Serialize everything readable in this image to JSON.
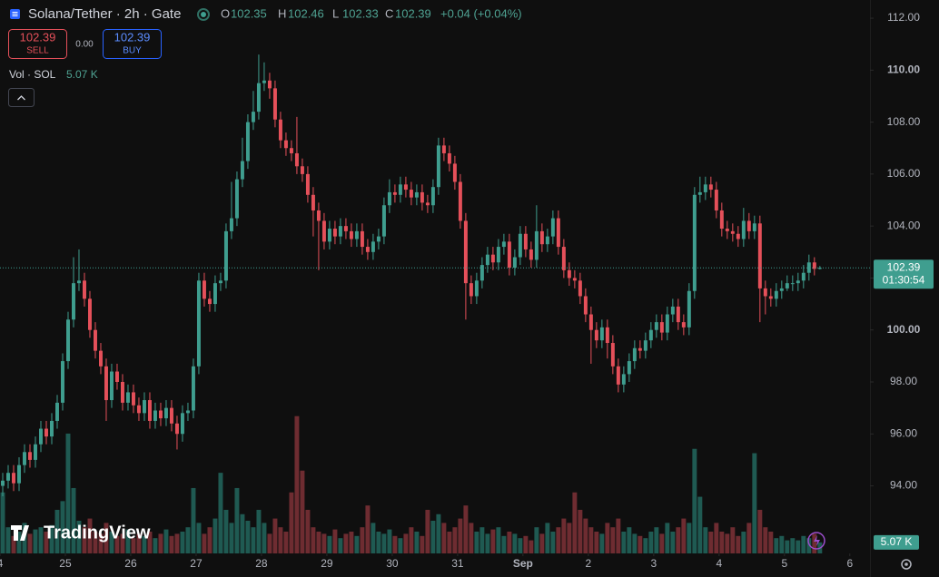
{
  "chart_data": {
    "type": "candlestick",
    "title": "Solana/Tether · 2h · Gate",
    "ohlc": [
      {
        "label": "O",
        "value": 102.35
      },
      {
        "label": "H",
        "value": 102.46
      },
      {
        "label": "L",
        "value": 102.33
      },
      {
        "label": "C",
        "value": 102.39
      }
    ],
    "change": "+0.04 (+0.04%)",
    "sell": {
      "price": 102.39,
      "label": "SELL"
    },
    "spread": "0.00",
    "buy": {
      "price": 102.39,
      "label": "BUY"
    },
    "volume_title": "Vol · SOL",
    "volume_last": "5.07 K",
    "price_tag": {
      "price": 102.39,
      "countdown": "01:30:54"
    },
    "volume_tag": "5.07 K",
    "brand": "TradingView",
    "up_color": "#3f9e8f",
    "down_color": "#e5505a",
    "volume_up_color": "#1f5a52",
    "volume_down_color": "#6e2c31",
    "xlim": [
      0,
      159.7
    ],
    "xticks": [
      {
        "value": 0,
        "label": "4"
      },
      {
        "value": 12,
        "label": "25"
      },
      {
        "value": 24,
        "label": "26"
      },
      {
        "value": 36,
        "label": "27"
      },
      {
        "value": 48,
        "label": "28"
      },
      {
        "value": 60,
        "label": "29"
      },
      {
        "value": 72,
        "label": "30"
      },
      {
        "value": 84,
        "label": "31"
      },
      {
        "value": 96,
        "label": "Sep"
      },
      {
        "value": 108,
        "label": "2"
      },
      {
        "value": 120,
        "label": "3"
      },
      {
        "value": 132,
        "label": "4"
      },
      {
        "value": 144,
        "label": "5"
      },
      {
        "value": 156,
        "label": "6"
      }
    ],
    "ylim": [
      91.4,
      112.7
    ],
    "yticks": [
      {
        "value": 94,
        "label": "94.00"
      },
      {
        "value": 96,
        "label": "96.00"
      },
      {
        "value": 98,
        "label": "98.00"
      },
      {
        "value": 100,
        "label": "100.00"
      },
      {
        "value": 102,
        "label": "102.00"
      },
      {
        "value": 104,
        "label": "104.00"
      },
      {
        "value": 106,
        "label": "106.00"
      },
      {
        "value": 108,
        "label": "108.00"
      },
      {
        "value": 110,
        "label": "110.00"
      },
      {
        "value": 112,
        "label": "112.00"
      }
    ],
    "y2lim": [
      0,
      254
    ],
    "open": [
      94.0,
      94.2,
      94.5,
      94.1,
      94.8,
      95.3,
      95.0,
      95.6,
      96.2,
      95.9,
      96.5,
      97.2,
      98.8,
      100.4,
      101.8,
      101.9,
      101.2,
      100.0,
      99.2,
      98.6,
      97.3,
      98.4,
      98.0,
      97.2,
      97.6,
      97.1,
      96.8,
      97.3,
      96.5,
      96.9,
      96.6,
      97.0,
      96.4,
      96.0,
      96.8,
      96.9,
      98.6,
      101.9,
      101.2,
      101.0,
      101.8,
      101.9,
      103.8,
      104.3,
      105.8,
      106.5,
      108.0,
      108.4,
      109.5,
      109.6,
      109.3,
      108.1,
      107.3,
      107.0,
      106.8,
      106.3,
      106.0,
      105.2,
      104.6,
      104.2,
      103.4,
      103.9,
      103.6,
      104.0,
      103.8,
      103.5,
      103.8,
      103.2,
      103.0,
      103.4,
      103.6,
      104.8,
      105.3,
      105.2,
      105.6,
      105.4,
      105.1,
      105.3,
      104.9,
      104.8,
      105.5,
      107.1,
      106.8,
      106.4,
      105.7,
      104.2,
      101.8,
      101.3,
      101.9,
      102.5,
      102.9,
      102.6,
      103.2,
      103.4,
      102.4,
      102.8,
      103.7,
      103.1,
      102.7,
      103.8,
      103.3,
      103.6,
      104.3,
      103.2,
      102.3,
      102.0,
      101.9,
      101.3,
      100.6,
      100.0,
      99.6,
      100.1,
      99.5,
      98.6,
      97.9,
      98.3,
      98.8,
      99.3,
      99.2,
      99.6,
      100.0,
      100.3,
      99.9,
      100.6,
      100.9,
      100.3,
      100.1,
      101.5,
      105.2,
      105.3,
      105.6,
      105.4,
      104.6,
      103.9,
      103.8,
      103.7,
      103.5,
      104.2,
      103.8,
      104.1,
      101.6,
      101.3,
      101.2,
      101.5,
      101.6,
      101.8,
      101.8,
      101.9,
      102.2,
      102.6,
      102.35
    ],
    "high": [
      94.5,
      94.8,
      94.8,
      95.1,
      95.6,
      95.6,
      95.9,
      96.5,
      96.5,
      96.8,
      97.5,
      99.1,
      100.7,
      102.8,
      103.1,
      102.2,
      101.5,
      100.3,
      99.5,
      98.9,
      98.7,
      98.7,
      98.3,
      97.9,
      97.9,
      97.4,
      97.6,
      97.6,
      97.2,
      97.2,
      97.3,
      97.3,
      96.7,
      97.1,
      97.2,
      98.9,
      102.2,
      102.2,
      101.5,
      102.1,
      102.2,
      104.1,
      105.7,
      106.1,
      107.4,
      108.3,
      109.2,
      110.6,
      110.3,
      109.9,
      109.6,
      108.4,
      107.6,
      107.3,
      108.2,
      106.6,
      106.3,
      105.5,
      104.9,
      104.5,
      104.2,
      104.2,
      104.3,
      104.3,
      104.1,
      104.1,
      104.1,
      103.5,
      103.7,
      103.9,
      105.1,
      105.8,
      105.6,
      105.9,
      105.9,
      105.7,
      105.6,
      105.6,
      105.2,
      105.8,
      107.4,
      107.4,
      107.1,
      106.7,
      106.0,
      104.5,
      102.1,
      102.2,
      102.8,
      103.2,
      103.2,
      103.5,
      103.7,
      103.7,
      103.1,
      104.0,
      104.0,
      103.4,
      104.8,
      104.1,
      103.9,
      104.6,
      104.6,
      103.5,
      102.6,
      102.3,
      102.2,
      101.6,
      100.9,
      100.3,
      100.4,
      100.4,
      99.8,
      98.9,
      98.6,
      99.1,
      99.6,
      99.6,
      99.9,
      100.3,
      100.6,
      100.6,
      100.9,
      101.2,
      101.2,
      100.6,
      101.8,
      105.5,
      105.9,
      105.9,
      105.9,
      105.7,
      104.9,
      104.2,
      104.1,
      104.0,
      104.7,
      104.5,
      104.4,
      104.4,
      101.9,
      101.6,
      101.8,
      101.9,
      102.1,
      102.1,
      102.2,
      102.5,
      102.9,
      102.8,
      102.46
    ],
    "low": [
      93.6,
      93.9,
      93.8,
      93.8,
      94.5,
      94.7,
      94.7,
      95.3,
      95.6,
      95.6,
      96.2,
      96.9,
      98.5,
      100.1,
      101.5,
      100.9,
      99.7,
      98.9,
      98.3,
      96.5,
      97.0,
      97.7,
      96.9,
      96.9,
      96.8,
      96.5,
      96.5,
      96.2,
      96.2,
      96.3,
      96.3,
      96.1,
      95.4,
      95.7,
      96.5,
      96.6,
      98.3,
      100.9,
      100.7,
      100.7,
      101.5,
      101.6,
      103.5,
      104.0,
      105.5,
      106.2,
      107.7,
      108.1,
      109.2,
      108.9,
      107.8,
      107.0,
      106.7,
      106.5,
      106.0,
      105.7,
      104.9,
      103.6,
      102.3,
      103.1,
      103.1,
      103.3,
      103.3,
      103.5,
      103.2,
      103.2,
      102.9,
      102.7,
      102.7,
      103.1,
      103.3,
      104.5,
      104.9,
      104.9,
      105.1,
      104.8,
      104.8,
      104.6,
      104.5,
      104.5,
      105.2,
      106.5,
      106.1,
      105.4,
      103.9,
      100.4,
      101.0,
      101.0,
      101.6,
      102.2,
      102.3,
      102.3,
      102.9,
      102.1,
      102.1,
      102.5,
      102.8,
      102.4,
      102.4,
      103.0,
      103.0,
      103.3,
      102.9,
      102.0,
      101.7,
      101.6,
      101.0,
      100.3,
      98.7,
      99.3,
      99.3,
      98.9,
      98.3,
      97.6,
      97.6,
      98.0,
      98.5,
      98.9,
      98.9,
      99.3,
      99.7,
      99.6,
      99.6,
      100.3,
      100.0,
      99.8,
      99.8,
      101.2,
      104.9,
      105.0,
      105.1,
      104.3,
      103.6,
      103.5,
      103.4,
      103.2,
      103.2,
      103.5,
      103.5,
      100.3,
      100.6,
      100.9,
      100.9,
      101.2,
      101.5,
      101.5,
      101.5,
      101.6,
      101.9,
      102.1,
      102.33
    ],
    "close": [
      94.2,
      94.5,
      94.1,
      94.8,
      95.3,
      95.0,
      95.6,
      96.2,
      95.9,
      96.5,
      97.2,
      98.8,
      100.4,
      101.8,
      101.9,
      101.2,
      100.0,
      99.2,
      98.6,
      97.3,
      98.4,
      98.0,
      97.2,
      97.6,
      97.1,
      96.8,
      97.3,
      96.5,
      96.9,
      96.6,
      97.0,
      96.4,
      96.0,
      96.8,
      96.9,
      98.6,
      101.9,
      101.2,
      101.0,
      101.8,
      101.9,
      103.8,
      104.3,
      105.8,
      106.5,
      108.0,
      108.4,
      109.5,
      109.6,
      109.3,
      108.1,
      107.3,
      107.0,
      106.8,
      106.3,
      106.0,
      105.2,
      104.6,
      104.2,
      103.4,
      103.9,
      103.6,
      104.0,
      103.8,
      103.5,
      103.8,
      103.2,
      103.0,
      103.4,
      103.6,
      104.8,
      105.3,
      105.2,
      105.6,
      105.4,
      105.1,
      105.3,
      104.9,
      104.8,
      105.5,
      107.1,
      106.8,
      106.4,
      105.7,
      104.2,
      101.8,
      101.3,
      101.9,
      102.5,
      102.9,
      102.6,
      103.2,
      103.4,
      102.4,
      102.8,
      103.7,
      103.1,
      102.7,
      103.8,
      103.3,
      103.6,
      104.3,
      103.2,
      102.3,
      102.0,
      101.9,
      101.3,
      100.6,
      100.0,
      99.6,
      100.1,
      99.5,
      98.6,
      97.9,
      98.3,
      98.8,
      99.3,
      99.2,
      99.6,
      100.0,
      100.3,
      99.9,
      100.6,
      100.9,
      100.3,
      100.1,
      101.5,
      105.2,
      105.3,
      105.6,
      105.4,
      104.6,
      103.9,
      103.8,
      103.7,
      103.5,
      104.2,
      103.8,
      104.1,
      101.6,
      101.3,
      101.2,
      101.5,
      101.6,
      101.8,
      101.8,
      101.9,
      102.2,
      102.6,
      102.35,
      102.39
    ],
    "volume": [
      28,
      12,
      8,
      10,
      14,
      9,
      11,
      12,
      10,
      13,
      20,
      24,
      55,
      30,
      15,
      12,
      16,
      10,
      9,
      14,
      10,
      8,
      9,
      11,
      7,
      9,
      8,
      10,
      7,
      9,
      11,
      8,
      9,
      10,
      12,
      30,
      14,
      9,
      12,
      16,
      37,
      20,
      14,
      30,
      18,
      15,
      12,
      20,
      14,
      9,
      16,
      12,
      10,
      28,
      63,
      38,
      20,
      12,
      10,
      9,
      8,
      11,
      7,
      9,
      10,
      8,
      12,
      22,
      14,
      10,
      9,
      11,
      8,
      7,
      9,
      12,
      10,
      8,
      20,
      15,
      18,
      14,
      10,
      12,
      16,
      22,
      14,
      10,
      12,
      9,
      11,
      12,
      8,
      10,
      9,
      7,
      8,
      6,
      12,
      9,
      14,
      10,
      12,
      16,
      14,
      28,
      20,
      16,
      12,
      10,
      9,
      14,
      12,
      16,
      10,
      12,
      9,
      8,
      7,
      10,
      12,
      9,
      14,
      10,
      12,
      16,
      14,
      48,
      26,
      12,
      10,
      14,
      10,
      9,
      12,
      8,
      10,
      14,
      46,
      20,
      12,
      10,
      7,
      8,
      6,
      7,
      6,
      8,
      7,
      9,
      5.07
    ]
  }
}
